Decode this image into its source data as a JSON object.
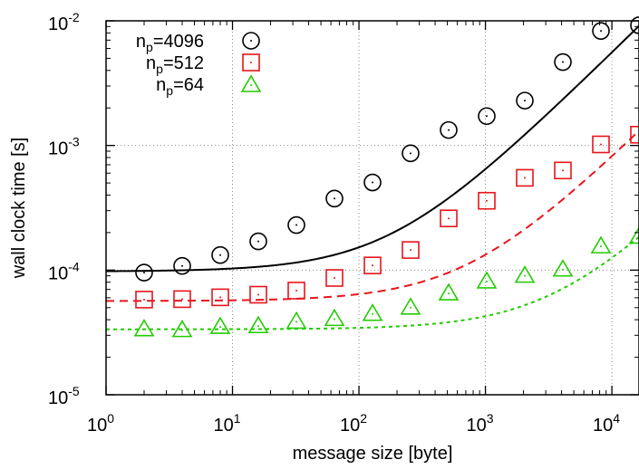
{
  "chart_data": {
    "type": "scatter",
    "xscale": "log",
    "yscale": "log",
    "xlim": [
      1,
      16384
    ],
    "ylim": [
      1e-05,
      0.01
    ],
    "grid": true,
    "legend_position": "top-left",
    "xlabel": "message size [byte]",
    "ylabel": "wall clock time [s]",
    "x_ticks": [
      {
        "base": "10",
        "exp": "0",
        "value": 1
      },
      {
        "base": "10",
        "exp": "1",
        "value": 10
      },
      {
        "base": "10",
        "exp": "2",
        "value": 100
      },
      {
        "base": "10",
        "exp": "3",
        "value": 1000
      },
      {
        "base": "10",
        "exp": "4",
        "value": 10000
      }
    ],
    "y_ticks": [
      {
        "base": "10",
        "exp": "-5",
        "value": 1e-05
      },
      {
        "base": "10",
        "exp": "-4",
        "value": 0.0001
      },
      {
        "base": "10",
        "exp": "-3",
        "value": 0.001
      },
      {
        "base": "10",
        "exp": "-2",
        "value": 0.01
      }
    ],
    "series": [
      {
        "label_main": "n",
        "label_sub": "p",
        "label_rest": "=4096",
        "color": "#000000",
        "marker": "circle",
        "fit_style": "solid",
        "fit": {
          "a": 9.75e-05,
          "b": 5.49e-07
        },
        "x": [
          2,
          4,
          8,
          16,
          32,
          64,
          128,
          256,
          512,
          1024,
          2048,
          4096,
          8192,
          16384
        ],
        "y": [
          9.55e-05,
          0.000108,
          0.000132,
          0.00017,
          0.00023,
          0.000375,
          0.000505,
          0.000865,
          0.00133,
          0.00172,
          0.00229,
          0.00467,
          0.0083,
          0.0092
        ]
      },
      {
        "label_main": "n",
        "label_sub": "p",
        "label_rest": "=512",
        "color": "#e8141b",
        "marker": "square",
        "fit_style": "dashed",
        "fit": {
          "a": 5.65e-05,
          "b": 7.65e-08
        },
        "x": [
          2,
          4,
          8,
          16,
          32,
          64,
          128,
          256,
          512,
          1024,
          2048,
          4096,
          8192,
          16384
        ],
        "y": [
          5.8e-05,
          5.85e-05,
          6.05e-05,
          6.35e-05,
          6.85e-05,
          8.65e-05,
          0.000109,
          0.000145,
          0.00026,
          0.00036,
          0.00055,
          0.00063,
          0.00102,
          0.00122
        ]
      },
      {
        "label_main": "n",
        "label_sub": "p",
        "label_rest": "=64",
        "color": "#22cc00",
        "marker": "triangle",
        "fit_style": "dotted",
        "fit": {
          "a": 3.35e-05,
          "b": 9.2e-09
        },
        "x": [
          2,
          4,
          8,
          16,
          32,
          64,
          128,
          256,
          512,
          1024,
          2048,
          4096,
          8192,
          16384
        ],
        "y": [
          3.35e-05,
          3.3e-05,
          3.5e-05,
          3.55e-05,
          3.85e-05,
          4.05e-05,
          4.45e-05,
          5e-05,
          6.5e-05,
          8.1e-05,
          9e-05,
          0.000101,
          0.000155,
          0.000185
        ]
      }
    ]
  }
}
